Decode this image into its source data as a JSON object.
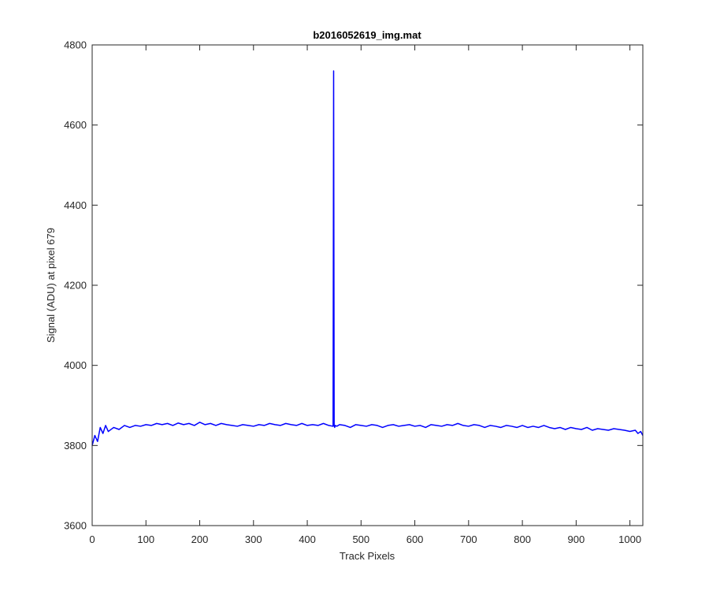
{
  "chart_data": {
    "type": "line",
    "title": "b2016052619_img.mat",
    "xlabel": "Track Pixels",
    "ylabel": "Signal (ADU) at pixel 679",
    "xlim": [
      0,
      1024
    ],
    "ylim": [
      3600,
      4800
    ],
    "xticks": [
      0,
      100,
      200,
      300,
      400,
      500,
      600,
      700,
      800,
      900,
      1000
    ],
    "yticks": [
      3600,
      3800,
      4000,
      4200,
      4400,
      4600,
      4800
    ],
    "grid": false,
    "line_color": "#0000ff",
    "series": [
      {
        "x": [
          0,
          5,
          10,
          15,
          20,
          25,
          30,
          40,
          50,
          60,
          70,
          80,
          90,
          100,
          110,
          120,
          130,
          140,
          150,
          160,
          170,
          180,
          190,
          200,
          210,
          220,
          230,
          240,
          250,
          260,
          270,
          280,
          290,
          300,
          310,
          320,
          330,
          340,
          350,
          360,
          370,
          380,
          390,
          400,
          410,
          420,
          430,
          440,
          448,
          449,
          450,
          451,
          452,
          455,
          460,
          470,
          480,
          490,
          500,
          510,
          520,
          530,
          540,
          550,
          560,
          570,
          580,
          590,
          600,
          610,
          620,
          630,
          640,
          650,
          660,
          670,
          680,
          690,
          700,
          710,
          720,
          730,
          740,
          750,
          760,
          770,
          780,
          790,
          800,
          810,
          820,
          830,
          840,
          850,
          860,
          870,
          880,
          890,
          900,
          910,
          920,
          930,
          940,
          950,
          960,
          970,
          980,
          990,
          1000,
          1010,
          1015,
          1020,
          1024
        ],
        "y": [
          3800,
          3825,
          3810,
          3845,
          3830,
          3850,
          3835,
          3845,
          3840,
          3850,
          3845,
          3850,
          3848,
          3852,
          3850,
          3855,
          3852,
          3855,
          3850,
          3856,
          3852,
          3855,
          3850,
          3858,
          3852,
          3855,
          3850,
          3855,
          3852,
          3850,
          3848,
          3852,
          3850,
          3848,
          3852,
          3850,
          3855,
          3852,
          3850,
          3855,
          3852,
          3850,
          3855,
          3850,
          3852,
          3850,
          3855,
          3850,
          3848,
          4735,
          3850,
          3845,
          3850,
          3848,
          3852,
          3850,
          3845,
          3852,
          3850,
          3848,
          3852,
          3850,
          3845,
          3850,
          3852,
          3848,
          3850,
          3852,
          3848,
          3850,
          3845,
          3852,
          3850,
          3848,
          3852,
          3850,
          3855,
          3850,
          3848,
          3852,
          3850,
          3845,
          3850,
          3848,
          3845,
          3850,
          3848,
          3845,
          3850,
          3845,
          3848,
          3845,
          3850,
          3845,
          3842,
          3845,
          3840,
          3845,
          3842,
          3840,
          3845,
          3838,
          3842,
          3840,
          3838,
          3842,
          3840,
          3838,
          3835,
          3838,
          3830,
          3835,
          3825
        ]
      }
    ]
  }
}
